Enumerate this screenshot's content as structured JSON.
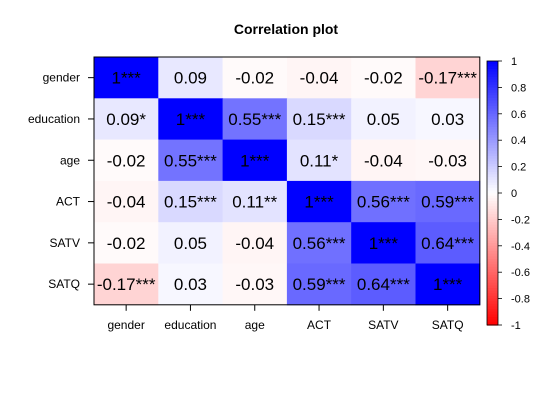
{
  "chart_data": {
    "type": "heatmap",
    "title": "Correlation plot",
    "rows": [
      "gender",
      "education",
      "age",
      "ACT",
      "SATV",
      "SATQ"
    ],
    "cols": [
      "gender",
      "education",
      "age",
      "ACT",
      "SATV",
      "SATQ"
    ],
    "values": [
      [
        1,
        0.09,
        -0.02,
        -0.04,
        -0.02,
        -0.17
      ],
      [
        0.09,
        1,
        0.55,
        0.15,
        0.05,
        0.03
      ],
      [
        -0.02,
        0.55,
        1,
        0.11,
        -0.04,
        -0.03
      ],
      [
        -0.04,
        0.15,
        0.11,
        1,
        0.56,
        0.59
      ],
      [
        -0.02,
        0.05,
        -0.04,
        0.56,
        1,
        0.64
      ],
      [
        -0.17,
        0.03,
        -0.03,
        0.59,
        0.64,
        1
      ]
    ],
    "labels": [
      [
        "1***",
        "0.09",
        "-0.02",
        "-0.04",
        "-0.02",
        "-0.17***"
      ],
      [
        "0.09*",
        "1***",
        "0.55***",
        "0.15***",
        "0.05",
        "0.03"
      ],
      [
        "-0.02",
        "0.55***",
        "1***",
        "0.11*",
        "-0.04",
        "-0.03"
      ],
      [
        "-0.04",
        "0.15***",
        "0.11**",
        "1***",
        "0.56***",
        "0.59***"
      ],
      [
        "-0.02",
        "0.05",
        "-0.04",
        "0.56***",
        "1***",
        "0.64***"
      ],
      [
        "-0.17***",
        "0.03",
        "-0.03",
        "0.59***",
        "0.64***",
        "1***"
      ]
    ],
    "color_scale": {
      "low": "#ff0000",
      "mid": "#ffffff",
      "high": "#0000ff",
      "range": [
        -1,
        1
      ],
      "ticks": [
        1,
        0.8,
        0.6,
        0.4,
        0.2,
        0,
        -0.2,
        -0.4,
        -0.6,
        -0.8,
        -1
      ],
      "tick_labels": [
        "1",
        "0.8",
        "0.6",
        "0.4",
        "0.2",
        "0",
        "-0.2",
        "-0.4",
        "-0.6",
        "-0.8",
        "-1"
      ]
    },
    "legend": "right"
  }
}
